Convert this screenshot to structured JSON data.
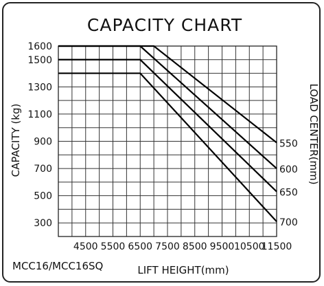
{
  "chart_data": {
    "type": "line",
    "title": "CAPACITY CHART",
    "xlabel": "LIFT HEIGHT(mm)",
    "ylabel": "CAPACITY (kg)",
    "right_label": "LOAD CENTER(mm)",
    "model": "MCC16/MCC16SQ",
    "x_ticks": [
      4500,
      5500,
      6500,
      7500,
      8500,
      9500,
      10500,
      11500
    ],
    "y_ticks": [
      300,
      500,
      700,
      900,
      1100,
      1300,
      1500,
      1600
    ],
    "xlim": [
      3500,
      11500
    ],
    "ylim": [
      200,
      1600
    ],
    "grid": true,
    "series": [
      {
        "name": "550",
        "x": [
          3500,
          7000,
          11500
        ],
        "y": [
          1600,
          1600,
          890
        ]
      },
      {
        "name": "600",
        "x": [
          3500,
          6500,
          11500
        ],
        "y": [
          1600,
          1600,
          700
        ]
      },
      {
        "name": "650",
        "x": [
          3500,
          6500,
          11500
        ],
        "y": [
          1500,
          1500,
          530
        ]
      },
      {
        "name": "700",
        "x": [
          3500,
          6500,
          11500
        ],
        "y": [
          1400,
          1400,
          310
        ]
      }
    ]
  }
}
